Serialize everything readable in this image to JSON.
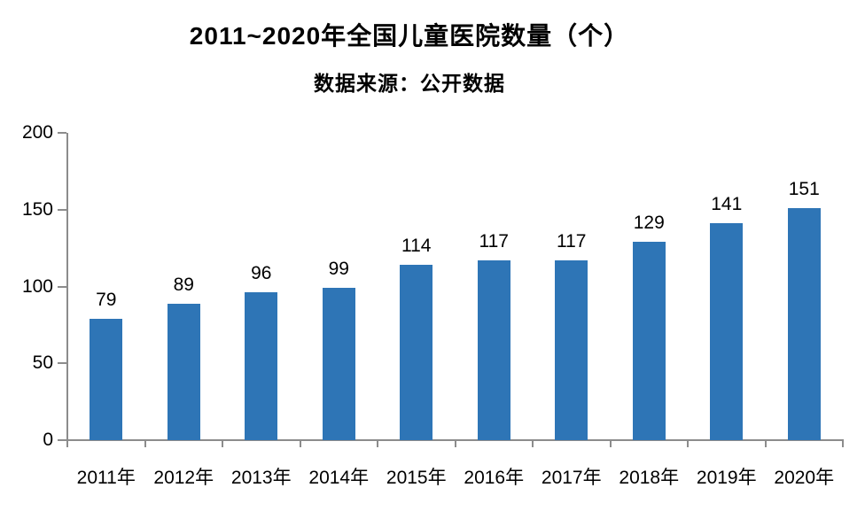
{
  "chart_data": {
    "type": "bar",
    "title": "2011~2020年全国儿童医院数量（个）",
    "subtitle": "数据来源：公开数据",
    "categories": [
      "2011年",
      "2012年",
      "2013年",
      "2014年",
      "2015年",
      "2016年",
      "2017年",
      "2018年",
      "2019年",
      "2020年"
    ],
    "values": [
      79,
      89,
      96,
      99,
      114,
      117,
      117,
      129,
      141,
      151
    ],
    "xlabel": "",
    "ylabel": "",
    "ylim": [
      0,
      200
    ],
    "yticks": [
      0,
      50,
      100,
      150,
      200
    ],
    "grid": false,
    "legend": "none",
    "bar_color": "#2E75B6",
    "axis_color": "#8C8C8C",
    "text_color": "#000000",
    "background_color": "#FFFFFF"
  }
}
